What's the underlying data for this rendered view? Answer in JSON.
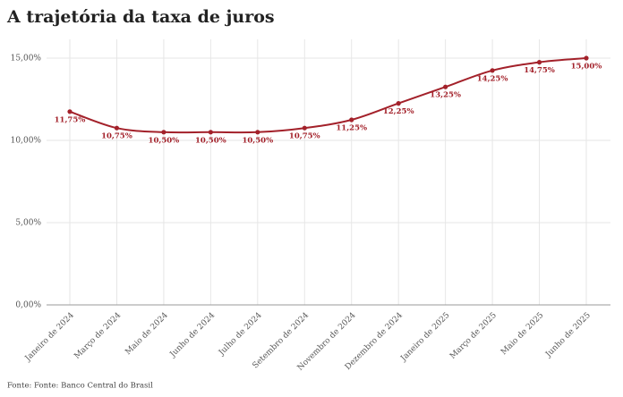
{
  "chart_data": {
    "type": "line",
    "title": "A trajetória da taxa de juros",
    "categories": [
      "Janeiro de 2024",
      "Março de 2024",
      "Maio de 2024",
      "Junho de 2024",
      "Julho de 2024",
      "Setembro de 2024",
      "Novembro de 2024",
      "Dezembro de 2024",
      "Janeiro de 2025",
      "Março de 2025",
      "Maio de 2025",
      "Junho de 2025"
    ],
    "values": [
      11.75,
      10.75,
      10.5,
      10.5,
      10.5,
      10.75,
      11.25,
      12.25,
      13.25,
      14.25,
      14.75,
      15
    ],
    "value_labels": [
      "11,75%",
      "10,75%",
      "10,50%",
      "10,50%",
      "10,50%",
      "10,75%",
      "11,25%",
      "12,25%",
      "13,25%",
      "14,25%",
      "14,75%",
      "15,00%"
    ],
    "color": "#a3212a",
    "ylim": [
      0,
      15
    ],
    "yticks": [
      {
        "value": 0,
        "label": "0,00%"
      },
      {
        "value": 5,
        "label": "5,00%"
      },
      {
        "value": 10,
        "label": "10,00%"
      },
      {
        "value": 15,
        "label": "15,00%"
      }
    ],
    "grid": true,
    "source": "Fonte: Fonte: Banco Central do Brasil"
  }
}
